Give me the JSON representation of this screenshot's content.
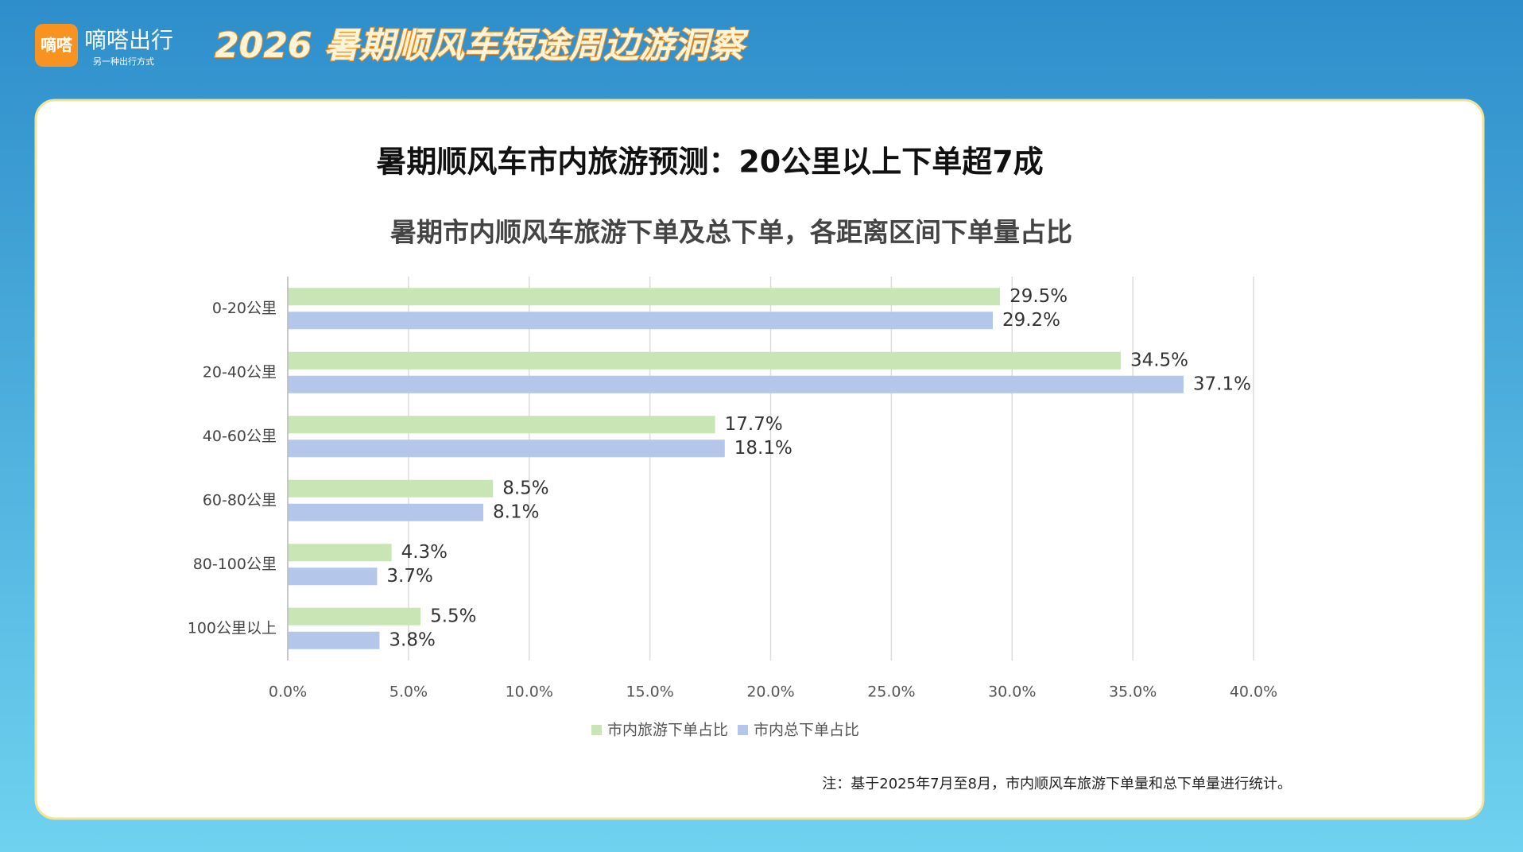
{
  "header": {
    "logo": "嘀嗒",
    "brand": "嘀嗒出行",
    "slogan": "另一种出行方式",
    "title": "2026 暑期顺风车短途周边游洞察"
  },
  "chart_data": {
    "type": "hbar",
    "title": "暑期顺风车市内旅游预测：20公里以上下单超7成",
    "subtitle": "暑期市内顺风车旅游下单及总下单，各距离区间下单量占比",
    "categories": [
      "0-20公里",
      "20-40公里",
      "40-60公里",
      "60-80公里",
      "80-100公里",
      "100公里以上"
    ],
    "series": [
      {
        "name": "市内旅游下单占比",
        "color": "#c9e5b5",
        "values": [
          29.5,
          34.5,
          17.7,
          8.5,
          4.3,
          5.5
        ],
        "value_labels": [
          "29.5%",
          "34.5%",
          "17.7%",
          "8.5%",
          "4.3%",
          "5.5%"
        ]
      },
      {
        "name": "市内总下单占比",
        "color": "#b4c6ea",
        "values": [
          29.2,
          37.1,
          18.1,
          8.1,
          3.7,
          3.8
        ],
        "value_labels": [
          "29.2%",
          "37.1%",
          "18.1%",
          "8.1%",
          "3.7%",
          "3.8%"
        ]
      }
    ],
    "xlim": [
      0,
      40
    ],
    "xticks": [
      {
        "value": 0,
        "label": "0.0%"
      },
      {
        "value": 5,
        "label": "5.0%"
      },
      {
        "value": 10,
        "label": "10.0%"
      },
      {
        "value": 15,
        "label": "15.0%"
      },
      {
        "value": 20,
        "label": "20.0%"
      },
      {
        "value": 25,
        "label": "25.0%"
      },
      {
        "value": 30,
        "label": "30.0%"
      },
      {
        "value": 35,
        "label": "35.0%"
      },
      {
        "value": 40,
        "label": "40.0%"
      }
    ],
    "grid": true,
    "legend": "bottom"
  },
  "note": "注：基于2025年7月至8月，市内顺风车旅游下单量和总下单量进行统计。"
}
